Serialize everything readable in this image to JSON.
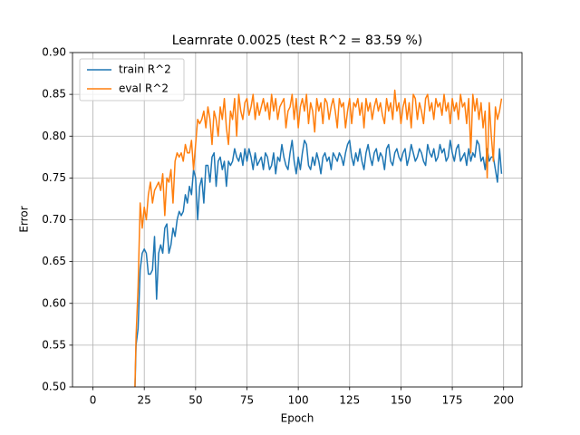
{
  "chart_data": {
    "type": "line",
    "title": "Learnrate 0.0025 (test R^2 = 83.59 %)",
    "x_label": "Epoch",
    "y_label": "Error",
    "x": [
      20,
      21,
      22,
      23,
      24,
      25,
      26,
      27,
      28,
      29,
      30,
      31,
      32,
      33,
      34,
      35,
      36,
      37,
      38,
      39,
      40,
      41,
      42,
      43,
      44,
      45,
      46,
      47,
      48,
      49,
      50,
      51,
      52,
      53,
      54,
      55,
      56,
      57,
      58,
      59,
      60,
      61,
      62,
      63,
      64,
      65,
      66,
      67,
      68,
      69,
      70,
      71,
      72,
      73,
      74,
      75,
      76,
      77,
      78,
      79,
      80,
      81,
      82,
      83,
      84,
      85,
      86,
      87,
      88,
      89,
      90,
      91,
      92,
      93,
      94,
      95,
      96,
      97,
      98,
      99,
      100,
      101,
      102,
      103,
      104,
      105,
      106,
      107,
      108,
      109,
      110,
      111,
      112,
      113,
      114,
      115,
      116,
      117,
      118,
      119,
      120,
      121,
      122,
      123,
      124,
      125,
      126,
      127,
      128,
      129,
      130,
      131,
      132,
      133,
      134,
      135,
      136,
      137,
      138,
      139,
      140,
      141,
      142,
      143,
      144,
      145,
      146,
      147,
      148,
      149,
      150,
      151,
      152,
      153,
      154,
      155,
      156,
      157,
      158,
      159,
      160,
      161,
      162,
      163,
      164,
      165,
      166,
      167,
      168,
      169,
      170,
      171,
      172,
      173,
      174,
      175,
      176,
      177,
      178,
      179,
      180,
      181,
      182,
      183,
      184,
      185,
      186,
      187,
      188,
      189,
      190,
      191,
      192,
      193,
      194,
      195,
      196,
      197,
      198,
      199
    ],
    "series": [
      {
        "name": "train R^2",
        "color": "#1f77b4",
        "values": [
          0.45,
          0.55,
          0.57,
          0.64,
          0.66,
          0.665,
          0.66,
          0.635,
          0.635,
          0.64,
          0.68,
          0.605,
          0.66,
          0.67,
          0.66,
          0.69,
          0.695,
          0.66,
          0.67,
          0.69,
          0.68,
          0.7,
          0.71,
          0.705,
          0.71,
          0.73,
          0.72,
          0.74,
          0.73,
          0.76,
          0.75,
          0.7,
          0.74,
          0.75,
          0.72,
          0.765,
          0.765,
          0.745,
          0.775,
          0.78,
          0.74,
          0.77,
          0.775,
          0.76,
          0.77,
          0.74,
          0.77,
          0.765,
          0.77,
          0.785,
          0.775,
          0.77,
          0.78,
          0.765,
          0.785,
          0.77,
          0.785,
          0.775,
          0.76,
          0.78,
          0.765,
          0.77,
          0.775,
          0.76,
          0.78,
          0.775,
          0.76,
          0.765,
          0.78,
          0.755,
          0.775,
          0.77,
          0.79,
          0.775,
          0.765,
          0.76,
          0.78,
          0.795,
          0.77,
          0.755,
          0.775,
          0.76,
          0.78,
          0.795,
          0.79,
          0.765,
          0.76,
          0.775,
          0.765,
          0.78,
          0.77,
          0.755,
          0.775,
          0.78,
          0.77,
          0.775,
          0.76,
          0.78,
          0.775,
          0.77,
          0.78,
          0.775,
          0.765,
          0.78,
          0.79,
          0.795,
          0.775,
          0.765,
          0.78,
          0.77,
          0.785,
          0.77,
          0.76,
          0.78,
          0.79,
          0.775,
          0.765,
          0.78,
          0.785,
          0.77,
          0.78,
          0.775,
          0.76,
          0.785,
          0.79,
          0.77,
          0.765,
          0.78,
          0.785,
          0.775,
          0.77,
          0.78,
          0.785,
          0.765,
          0.775,
          0.79,
          0.78,
          0.77,
          0.775,
          0.785,
          0.78,
          0.77,
          0.765,
          0.79,
          0.78,
          0.775,
          0.785,
          0.77,
          0.775,
          0.79,
          0.78,
          0.785,
          0.77,
          0.775,
          0.795,
          0.78,
          0.77,
          0.785,
          0.79,
          0.77,
          0.775,
          0.78,
          0.765,
          0.785,
          0.77,
          0.78,
          0.775,
          0.795,
          0.79,
          0.77,
          0.775,
          0.76,
          0.785,
          0.77,
          0.775,
          0.775,
          0.76,
          0.745,
          0.785,
          0.755
        ]
      },
      {
        "name": "eval R^2",
        "color": "#ff7f0e",
        "values": [
          0.45,
          0.56,
          0.62,
          0.72,
          0.69,
          0.715,
          0.7,
          0.73,
          0.745,
          0.72,
          0.735,
          0.74,
          0.745,
          0.735,
          0.755,
          0.705,
          0.75,
          0.745,
          0.76,
          0.72,
          0.77,
          0.78,
          0.775,
          0.78,
          0.77,
          0.79,
          0.78,
          0.78,
          0.795,
          0.76,
          0.79,
          0.82,
          0.815,
          0.82,
          0.83,
          0.81,
          0.835,
          0.82,
          0.79,
          0.83,
          0.82,
          0.8,
          0.835,
          0.82,
          0.845,
          0.81,
          0.79,
          0.83,
          0.82,
          0.845,
          0.8,
          0.85,
          0.83,
          0.82,
          0.84,
          0.845,
          0.825,
          0.835,
          0.85,
          0.82,
          0.84,
          0.825,
          0.835,
          0.845,
          0.83,
          0.84,
          0.82,
          0.85,
          0.83,
          0.845,
          0.82,
          0.835,
          0.84,
          0.845,
          0.81,
          0.83,
          0.835,
          0.85,
          0.82,
          0.845,
          0.81,
          0.835,
          0.845,
          0.83,
          0.85,
          0.815,
          0.84,
          0.83,
          0.805,
          0.845,
          0.83,
          0.84,
          0.815,
          0.845,
          0.84,
          0.82,
          0.835,
          0.845,
          0.83,
          0.81,
          0.845,
          0.835,
          0.84,
          0.81,
          0.83,
          0.845,
          0.815,
          0.84,
          0.835,
          0.845,
          0.825,
          0.84,
          0.81,
          0.845,
          0.83,
          0.84,
          0.82,
          0.835,
          0.845,
          0.83,
          0.84,
          0.825,
          0.815,
          0.845,
          0.83,
          0.84,
          0.82,
          0.855,
          0.83,
          0.84,
          0.815,
          0.835,
          0.845,
          0.82,
          0.84,
          0.81,
          0.85,
          0.845,
          0.82,
          0.84,
          0.83,
          0.815,
          0.845,
          0.85,
          0.83,
          0.84,
          0.82,
          0.845,
          0.835,
          0.84,
          0.825,
          0.85,
          0.83,
          0.84,
          0.815,
          0.845,
          0.83,
          0.84,
          0.82,
          0.85,
          0.835,
          0.84,
          0.815,
          0.845,
          0.78,
          0.85,
          0.83,
          0.845,
          0.82,
          0.84,
          0.81,
          0.83,
          0.75,
          0.84,
          0.8,
          0.77,
          0.835,
          0.82,
          0.83,
          0.845
        ]
      }
    ],
    "xlim": [
      -9.95,
      208.95
    ],
    "ylim": [
      0.5,
      0.9
    ],
    "xticks": [
      0,
      25,
      50,
      75,
      100,
      125,
      150,
      175,
      200
    ],
    "yticks": [
      {
        "value": 0.5,
        "label": "0.50"
      },
      0.55,
      {
        "value": 0.6,
        "label": "0.60"
      },
      0.65,
      {
        "value": 0.7,
        "label": "0.70"
      },
      0.75,
      {
        "value": 0.8,
        "label": "0.80"
      },
      0.85,
      {
        "value": 0.9,
        "label": "0.90"
      }
    ],
    "grid": true,
    "legend": "upper-left"
  }
}
